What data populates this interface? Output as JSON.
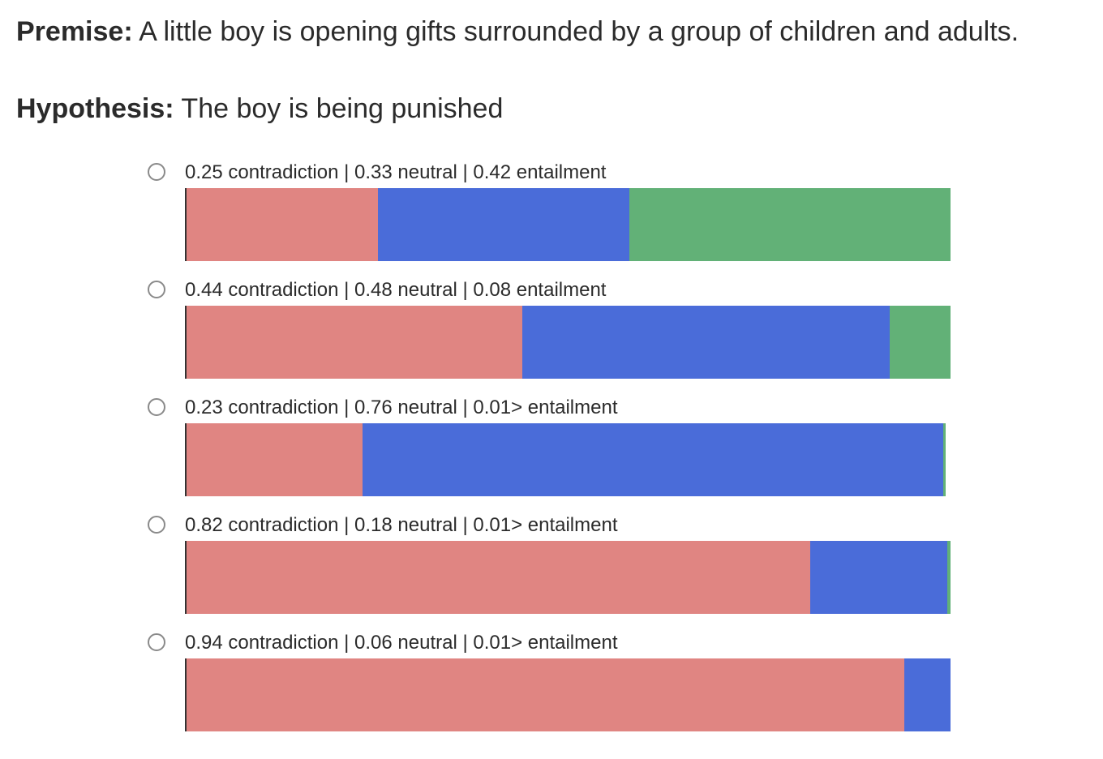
{
  "premise": {
    "label": "Premise:",
    "text": " A little boy is opening gifts surrounded by a group of children and adults."
  },
  "hypothesis": {
    "label": "Hypothesis:",
    "text": " The boy is being punished"
  },
  "colors": {
    "contradiction": "#e08582",
    "neutral": "#4a6cd9",
    "entailment": "#62b177"
  },
  "options": [
    {
      "label": "0.25 contradiction | 0.33 neutral | 0.42 entailment",
      "contradiction": 0.25,
      "neutral": 0.33,
      "entailment": 0.42
    },
    {
      "label": "0.44 contradiction | 0.48 neutral | 0.08 entailment",
      "contradiction": 0.44,
      "neutral": 0.48,
      "entailment": 0.08
    },
    {
      "label": "0.23 contradiction | 0.76 neutral | 0.01> entailment",
      "contradiction": 0.23,
      "neutral": 0.76,
      "entailment": 0.004
    },
    {
      "label": "0.82 contradiction | 0.18 neutral | 0.01> entailment",
      "contradiction": 0.82,
      "neutral": 0.18,
      "entailment": 0.004
    },
    {
      "label": "0.94 contradiction | 0.06 neutral | 0.01> entailment",
      "contradiction": 0.94,
      "neutral": 0.06,
      "entailment": 0.0
    }
  ]
}
